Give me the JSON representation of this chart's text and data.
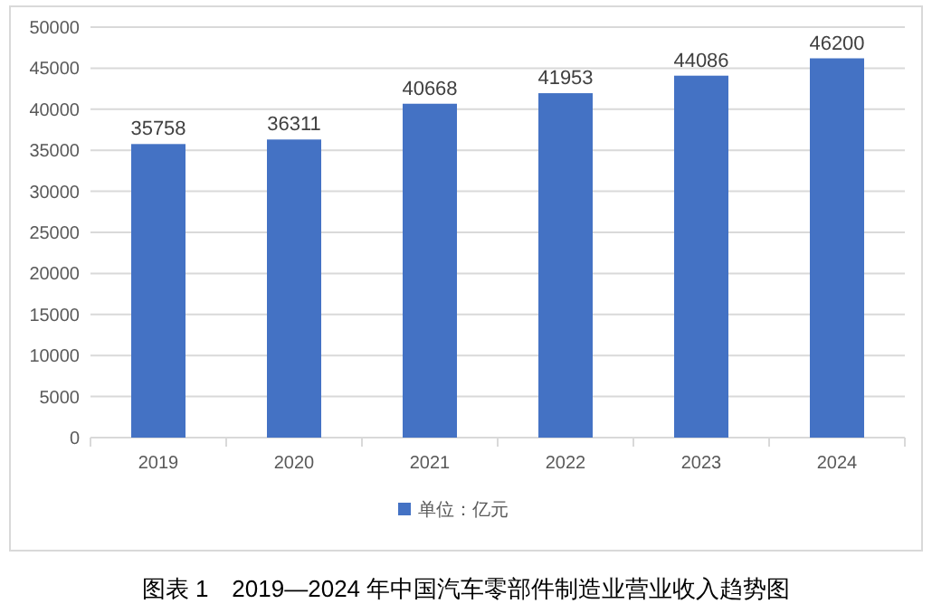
{
  "chart_data": {
    "type": "bar",
    "categories": [
      "2019",
      "2020",
      "2021",
      "2022",
      "2023",
      "2024"
    ],
    "series": [
      {
        "name": "单位：亿元",
        "color": "#4472c4",
        "values": [
          35758,
          36311,
          40668,
          41953,
          44086,
          46200
        ]
      }
    ],
    "ylim": [
      0,
      50000
    ],
    "yticks": [
      0,
      5000,
      10000,
      15000,
      20000,
      25000,
      30000,
      35000,
      40000,
      45000,
      50000
    ],
    "grid": "y",
    "data_labels": true,
    "legend": "bottom",
    "annotations": [
      "图表 1　2019—2024 年中国汽车零部件制造业营业收入趋势图"
    ]
  }
}
